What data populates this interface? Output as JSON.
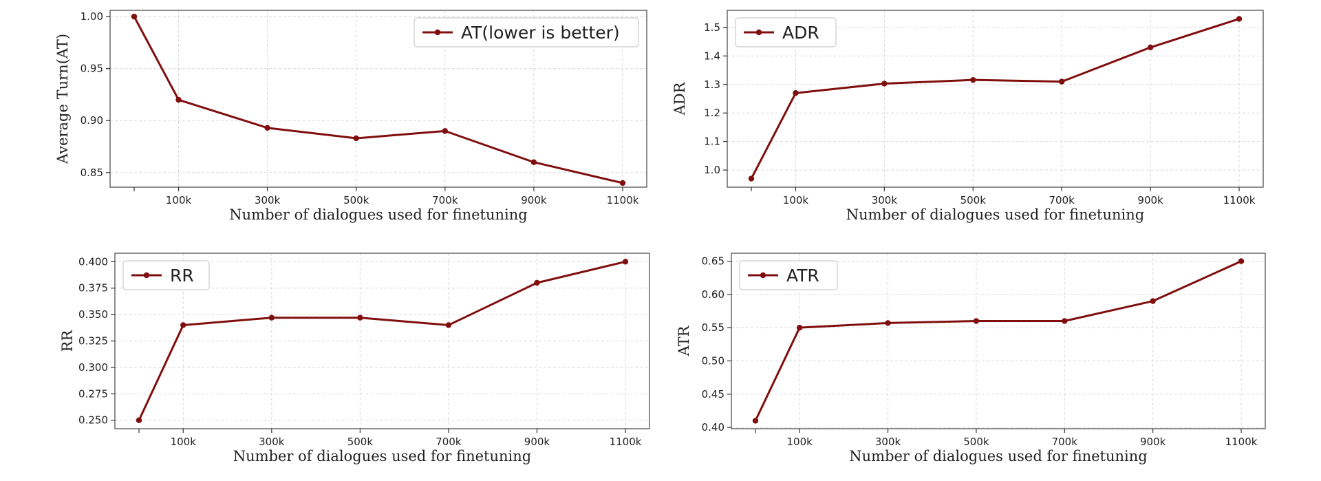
{
  "colors": {
    "line": "#800e0e",
    "grid": "#d9d9d9",
    "frame": "#444444"
  },
  "chart_data": [
    {
      "type": "line",
      "title": "",
      "xlabel": "Number of dialogues used for finetuning",
      "ylabel": "Average Turn(AT)",
      "x": [
        0,
        100,
        300,
        500,
        700,
        900,
        1100
      ],
      "x_tick_values": [
        100,
        300,
        500,
        700,
        900,
        1100
      ],
      "x_tick_labels": [
        "100k",
        "300k",
        "500k",
        "700k",
        "900k",
        "1100k"
      ],
      "ylim": [
        0.836,
        1.006
      ],
      "y_ticks": [
        "0.85",
        "0.90",
        "0.95",
        "1.00"
      ],
      "grid": true,
      "legend_position": "top-right",
      "series": [
        {
          "name": "AT(lower is better)",
          "values": [
            1.0,
            0.92,
            0.893,
            0.883,
            0.89,
            0.86,
            0.84
          ]
        }
      ]
    },
    {
      "type": "line",
      "title": "",
      "xlabel": "Number of dialogues used for finetuning",
      "ylabel": "ADR",
      "x": [
        0,
        100,
        300,
        500,
        700,
        900,
        1100
      ],
      "x_tick_values": [
        100,
        300,
        500,
        700,
        900,
        1100
      ],
      "x_tick_labels": [
        "100k",
        "300k",
        "500k",
        "700k",
        "900k",
        "1100k"
      ],
      "ylim": [
        0.94,
        1.56
      ],
      "y_ticks": [
        "1.0",
        "1.1",
        "1.2",
        "1.3",
        "1.4",
        "1.5"
      ],
      "grid": true,
      "legend_position": "top-left",
      "series": [
        {
          "name": "ADR",
          "values": [
            0.97,
            1.27,
            1.303,
            1.316,
            1.31,
            1.43,
            1.53
          ]
        }
      ]
    },
    {
      "type": "line",
      "title": "",
      "xlabel": "Number of dialogues used for finetuning",
      "ylabel": "RR",
      "x": [
        0,
        100,
        300,
        500,
        700,
        900,
        1100
      ],
      "x_tick_values": [
        100,
        300,
        500,
        700,
        900,
        1100
      ],
      "x_tick_labels": [
        "100k",
        "300k",
        "500k",
        "700k",
        "900k",
        "1100k"
      ],
      "ylim": [
        0.242,
        0.408
      ],
      "y_ticks": [
        "0.250",
        "0.275",
        "0.300",
        "0.325",
        "0.350",
        "0.375",
        "0.400"
      ],
      "grid": true,
      "legend_position": "top-left",
      "series": [
        {
          "name": "RR",
          "values": [
            0.25,
            0.34,
            0.347,
            0.347,
            0.34,
            0.38,
            0.4
          ]
        }
      ]
    },
    {
      "type": "line",
      "title": "",
      "xlabel": "Number of dialogues used for finetuning",
      "ylabel": "ATR",
      "x": [
        0,
        100,
        300,
        500,
        700,
        900,
        1100
      ],
      "x_tick_values": [
        100,
        300,
        500,
        700,
        900,
        1100
      ],
      "x_tick_labels": [
        "100k",
        "300k",
        "500k",
        "700k",
        "900k",
        "1100k"
      ],
      "ylim": [
        0.398,
        0.662
      ],
      "y_ticks": [
        "0.40",
        "0.45",
        "0.50",
        "0.55",
        "0.60",
        "0.65"
      ],
      "grid": true,
      "legend_position": "top-left",
      "series": [
        {
          "name": "ATR",
          "values": [
            0.41,
            0.55,
            0.557,
            0.56,
            0.56,
            0.59,
            0.65
          ]
        }
      ]
    }
  ]
}
